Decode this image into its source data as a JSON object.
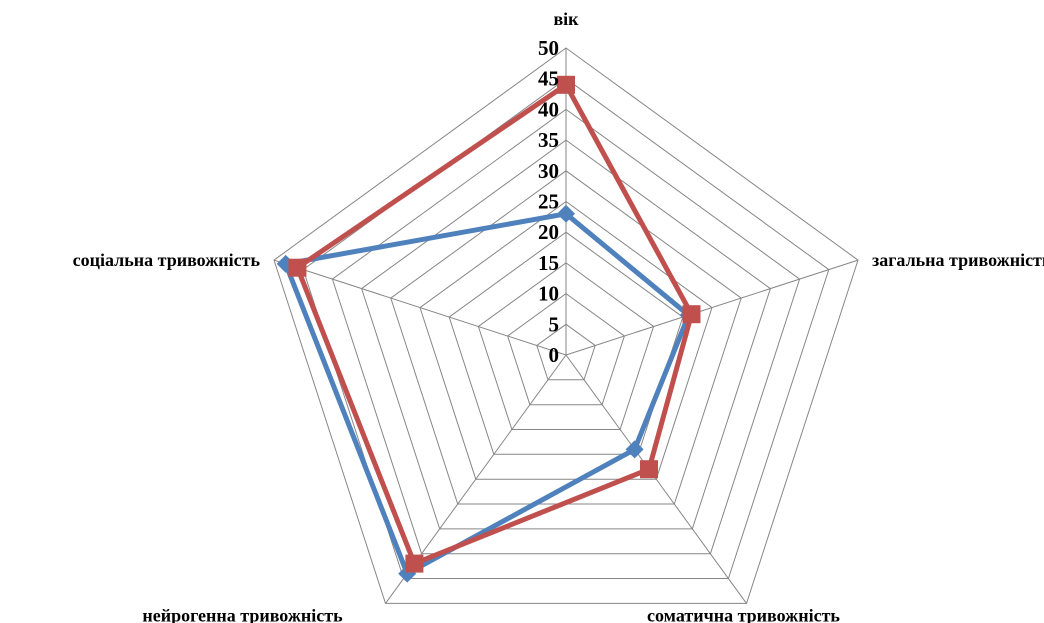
{
  "chart_data": {
    "type": "radar",
    "categories": [
      "вік",
      "загальна тривожність",
      "соматична тривожність",
      "нейрогенна тривожність",
      "соціальна тривожність"
    ],
    "series": [
      {
        "color": "#4F81BD",
        "marker": "diamond",
        "values": [
          23,
          21,
          19,
          44,
          48
        ]
      },
      {
        "color": "#C0504D",
        "marker": "square",
        "values": [
          44,
          21.5,
          23,
          42,
          46
        ]
      }
    ],
    "r_ticks": [
      "0",
      "5",
      "10",
      "15",
      "20",
      "25",
      "30",
      "35",
      "40",
      "45",
      "50"
    ],
    "rlim": [
      0,
      50
    ],
    "grid": true,
    "grid_color": "#868686",
    "legend": "none"
  }
}
